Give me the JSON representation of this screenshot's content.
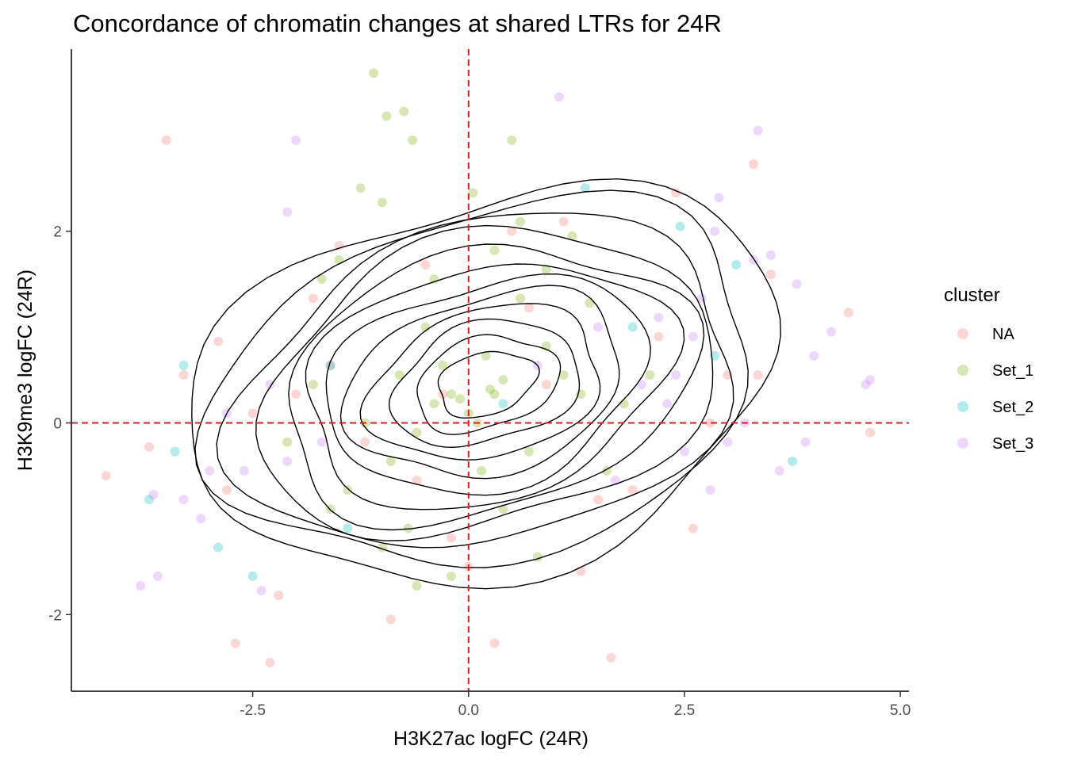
{
  "chart_data": {
    "type": "scatter",
    "title": "Concordance of chromatin changes at shared LTRs for 24R",
    "xlabel": "H3K27ac logFC (24R)",
    "ylabel": "H3K9me3 logFC (24R)",
    "xlim": [
      -4.6,
      5.1
    ],
    "ylim": [
      -2.8,
      3.9
    ],
    "x_ticks": [
      -2.5,
      0.0,
      2.5,
      5.0
    ],
    "x_tick_labels": [
      "-2.5",
      "0.0",
      "2.5",
      "5.0"
    ],
    "y_ticks": [
      -2,
      0,
      2
    ],
    "y_tick_labels": [
      "-2",
      "0",
      "2"
    ],
    "reference_lines": {
      "x": 0,
      "y": 0,
      "color": "#e41a1c",
      "style": "dashed"
    },
    "grid": false,
    "legend": {
      "title": "cluster",
      "position": "right",
      "entries": [
        {
          "label": "NA",
          "color": "#F8766D"
        },
        {
          "label": "Set_1",
          "color": "#7CAE00"
        },
        {
          "label": "Set_2",
          "color": "#00BFC4"
        },
        {
          "label": "Set_3",
          "color": "#C77CFF"
        }
      ]
    },
    "point_alpha": 0.3,
    "series": [
      {
        "name": "NA",
        "color": "#F8766D",
        "x": [
          -3.5,
          -2.7,
          -2.3,
          -1.5,
          -0.5,
          0.5,
          1.3,
          2.4,
          3.3,
          3.35,
          -2.9,
          -2.8,
          -3.3,
          -4.2,
          -3.7,
          -2.2,
          -1.8,
          -0.9,
          -0.2,
          0.3,
          1.1,
          1.9,
          2.8,
          3.5,
          4.4,
          4.65,
          1.65,
          -2.5,
          -0.6,
          0.9,
          2.2,
          -1.2,
          0.0,
          1.5,
          -2.0,
          3.0,
          2.6,
          -1.6,
          0.7,
          -0.3
        ],
        "y": [
          2.95,
          -2.3,
          -2.5,
          1.85,
          1.65,
          2.0,
          -1.55,
          2.4,
          2.7,
          0.5,
          0.85,
          -0.7,
          0.5,
          -0.55,
          -0.25,
          -1.8,
          1.3,
          -2.05,
          -1.2,
          -2.3,
          2.1,
          -0.7,
          0.0,
          1.55,
          1.15,
          -0.1,
          -2.45,
          0.1,
          -0.6,
          0.4,
          0.9,
          -0.2,
          -1.5,
          -0.8,
          0.3,
          0.5,
          -1.1,
          0.6,
          1.2,
          0.3
        ]
      },
      {
        "name": "Set_1",
        "color": "#7CAE00",
        "x": [
          -1.1,
          -0.95,
          -0.75,
          -0.65,
          -1.25,
          -1.0,
          0.05,
          0.5,
          0.6,
          1.2,
          -1.5,
          -1.7,
          0.9,
          1.4,
          -0.2,
          0.3,
          0.1,
          -0.4,
          -0.6,
          -0.8,
          0.2,
          0.4,
          -0.1,
          0.0,
          0.25,
          -0.3,
          0.7,
          -0.9,
          -1.2,
          0.9,
          1.1,
          -0.5,
          0.15,
          -1.8,
          -0.7,
          0.6,
          1.3,
          -1.4,
          0.4,
          -0.2,
          1.8,
          2.1,
          -2.1,
          -0.6,
          0.3,
          -1.0,
          0.8,
          -0.4,
          -1.6,
          1.6
        ],
        "y": [
          3.65,
          3.2,
          3.25,
          2.95,
          2.45,
          2.3,
          2.4,
          2.95,
          2.1,
          1.95,
          1.7,
          1.5,
          1.6,
          1.25,
          0.3,
          0.3,
          0.0,
          0.2,
          -0.1,
          0.5,
          0.7,
          0.45,
          0.25,
          0.1,
          0.35,
          0.6,
          -0.3,
          -0.4,
          0.0,
          0.8,
          0.5,
          1.0,
          -0.5,
          0.4,
          -1.1,
          1.3,
          0.3,
          -0.7,
          -0.9,
          -1.6,
          0.2,
          0.5,
          -0.2,
          -1.7,
          1.8,
          -1.3,
          -1.4,
          1.5,
          -0.9,
          -0.5
        ]
      },
      {
        "name": "Set_2",
        "color": "#00BFC4",
        "x": [
          -3.3,
          -3.4,
          -2.9,
          -1.6,
          1.35,
          2.45,
          3.1,
          3.75,
          2.85,
          -1.4,
          -2.5,
          0.4,
          1.9,
          -3.7
        ],
        "y": [
          0.6,
          -0.3,
          -1.3,
          0.6,
          2.45,
          2.05,
          1.65,
          -0.4,
          0.7,
          -1.1,
          -1.6,
          0.2,
          1.0,
          -0.8
        ]
      },
      {
        "name": "Set_3",
        "color": "#C77CFF",
        "x": [
          1.05,
          3.35,
          -2.0,
          -2.1,
          -3.8,
          -3.65,
          -3.3,
          -2.4,
          -2.1,
          2.9,
          2.85,
          3.5,
          3.8,
          4.0,
          4.6,
          4.65,
          2.6,
          3.2,
          3.6,
          2.5,
          2.8,
          3.9,
          2.0,
          2.3,
          -2.8,
          -2.6,
          -3.1,
          -3.6,
          3.3,
          2.7,
          4.2,
          -1.7,
          1.7,
          2.2,
          0.8,
          -2.3,
          -3.0,
          3.0,
          2.4,
          1.5
        ],
        "y": [
          3.4,
          3.05,
          2.95,
          2.2,
          -1.7,
          -0.75,
          -0.8,
          -1.75,
          -0.4,
          2.35,
          2.0,
          1.75,
          1.45,
          0.7,
          0.4,
          0.45,
          0.9,
          0.0,
          -0.5,
          -0.3,
          -0.7,
          -0.2,
          0.4,
          0.2,
          0.1,
          -0.5,
          -1.0,
          -1.6,
          1.7,
          1.3,
          0.95,
          -0.2,
          -0.6,
          1.1,
          0.6,
          0.4,
          -0.5,
          -0.2,
          0.5,
          1.0
        ]
      }
    ],
    "contour_levels": 12
  }
}
